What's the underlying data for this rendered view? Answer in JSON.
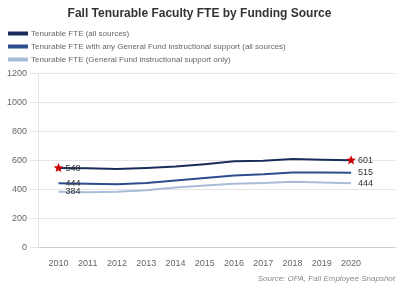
{
  "chart_data": {
    "type": "line",
    "title": "Fall Tenurable Faculty FTE by Funding Source",
    "source": "Source: OPA, Fall Employee Snapshot",
    "x": [
      2010,
      2011,
      2012,
      2013,
      2014,
      2015,
      2016,
      2017,
      2018,
      2019,
      2020
    ],
    "xlim": [
      2009.3,
      2021.5
    ],
    "xticks": [
      2010,
      2011,
      2012,
      2013,
      2014,
      2015,
      2016,
      2017,
      2018,
      2019,
      2020
    ],
    "ylim": [
      0,
      1200
    ],
    "yticks": [
      0,
      200,
      400,
      600,
      800,
      1000,
      1200
    ],
    "grid": "y",
    "legend": "upper left",
    "series": [
      {
        "name": "Tenurable FTE (all sources)",
        "color": "#1a2d5a",
        "values": [
          548,
          546,
          542,
          548,
          558,
          575,
          595,
          598,
          610,
          605,
          601
        ]
      },
      {
        "name": "Tenurable FTE with any General Fund instructional support (all sources)",
        "color": "#2e4d8e",
        "values": [
          444,
          440,
          436,
          445,
          462,
          480,
          497,
          505,
          518,
          517,
          515
        ]
      },
      {
        "name": "Tenurable FTE (General Fund instructional support only)",
        "color": "#a8bcd8",
        "values": [
          384,
          382,
          385,
          395,
          414,
          428,
          440,
          445,
          453,
          448,
          444
        ]
      }
    ],
    "annotations": [
      {
        "text": "548",
        "x": 2010,
        "y": 548,
        "marker": "star",
        "color": "#cc0000"
      },
      {
        "text": "444",
        "x": 2010,
        "y": 444
      },
      {
        "text": "384",
        "x": 2010,
        "y": 384
      },
      {
        "text": "601",
        "x": 2020,
        "y": 601,
        "marker": "star",
        "color": "#cc0000"
      },
      {
        "text": "515",
        "x": 2020,
        "y": 515
      },
      {
        "text": "444",
        "x": 2020,
        "y": 444
      }
    ]
  }
}
